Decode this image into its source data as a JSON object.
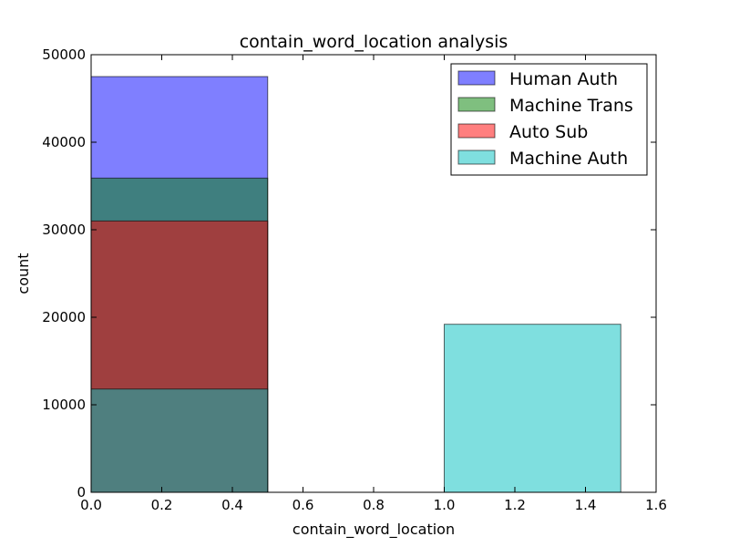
{
  "chart_data": {
    "type": "bar",
    "title": "contain_word_location analysis",
    "xlabel": "contain_word_location",
    "ylabel": "count",
    "xlim": [
      0.0,
      1.6
    ],
    "ylim": [
      0,
      50000
    ],
    "x_ticks": [
      "0.0",
      "0.2",
      "0.4",
      "0.6",
      "0.8",
      "1.0",
      "1.2",
      "1.4",
      "1.6"
    ],
    "y_ticks": [
      "0",
      "10000",
      "20000",
      "30000",
      "40000",
      "50000"
    ],
    "bins": [
      [
        0.0,
        0.5
      ],
      [
        1.0,
        1.5
      ]
    ],
    "legend_position": "top-right",
    "series": [
      {
        "name": "Human Auth",
        "color": "#0000ff",
        "values": [
          47500,
          0
        ]
      },
      {
        "name": "Machine Trans",
        "color": "#008000",
        "values": [
          35900,
          0
        ]
      },
      {
        "name": "Auto Sub",
        "color": "#ff0000",
        "values": [
          31000,
          0
        ]
      },
      {
        "name": "Machine Auth",
        "color": "#00bfbf",
        "values": [
          11800,
          19200
        ]
      }
    ]
  }
}
